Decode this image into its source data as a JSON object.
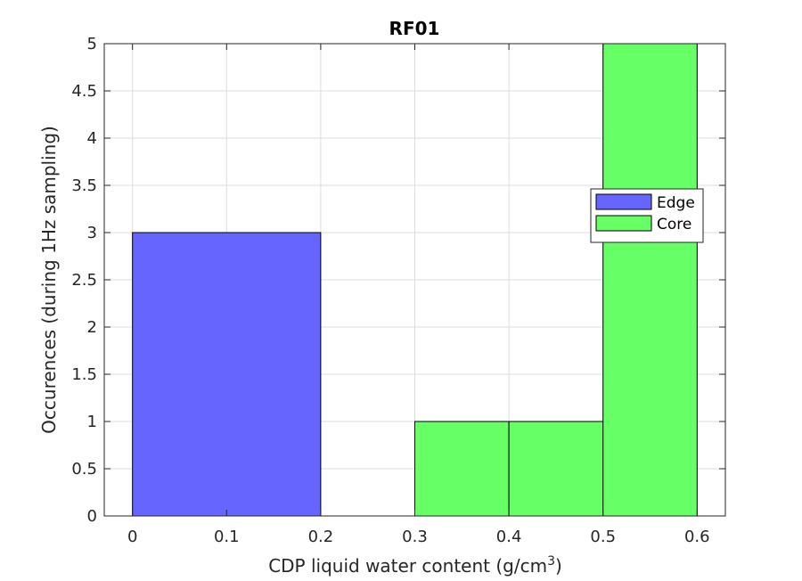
{
  "chart_data": {
    "type": "bar",
    "title": "RF01",
    "xlabel": "CDP liquid water content (g/cm",
    "xlabel_sup": "3",
    "xlabel_suffix": ")",
    "ylabel": "Occurences (during 1Hz sampling)",
    "xlim": [
      -0.03,
      0.63
    ],
    "ylim": [
      0,
      5
    ],
    "xticks": [
      "0",
      "0.1",
      "0.2",
      "0.3",
      "0.4",
      "0.5",
      "0.6"
    ],
    "xtick_values": [
      0,
      0.1,
      0.2,
      0.3,
      0.4,
      0.5,
      0.6
    ],
    "yticks": [
      "0",
      "0.5",
      "1",
      "1.5",
      "2",
      "2.5",
      "3",
      "3.5",
      "4",
      "4.5",
      "5"
    ],
    "ytick_values": [
      0,
      0.5,
      1,
      1.5,
      2,
      2.5,
      3,
      3.5,
      4,
      4.5,
      5
    ],
    "grid": true,
    "legend_position": "right",
    "series": [
      {
        "name": "Edge",
        "color": "#6666ff",
        "bins": [
          {
            "from": 0.0,
            "to": 0.2,
            "value": 3
          }
        ]
      },
      {
        "name": "Core",
        "color": "#66ff66",
        "bins": [
          {
            "from": 0.3,
            "to": 0.4,
            "value": 1
          },
          {
            "from": 0.4,
            "to": 0.5,
            "value": 1
          },
          {
            "from": 0.5,
            "to": 0.6,
            "value": 5
          }
        ]
      }
    ]
  }
}
